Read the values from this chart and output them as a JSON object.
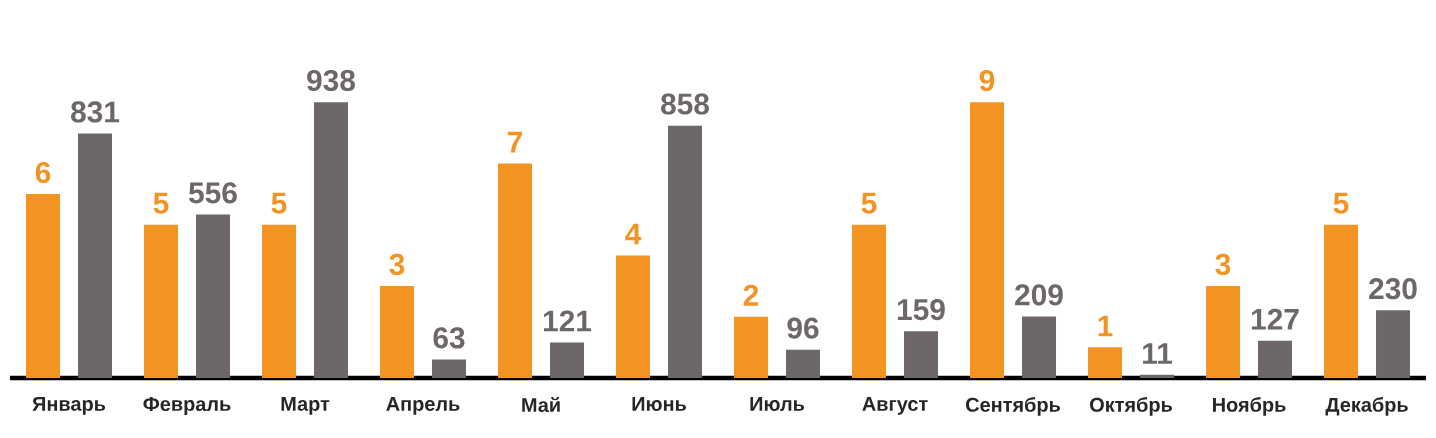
{
  "chart_data": {
    "type": "bar",
    "categories": [
      "Январь",
      "Февраль",
      "Март",
      "Апрель",
      "Май",
      "Июнь",
      "Июль",
      "Август",
      "Сентябрь",
      "Октябрь",
      "Ноябрь",
      "Декабрь"
    ],
    "series": [
      {
        "color": "#f39322",
        "values": [
          6,
          5,
          5,
          3,
          7,
          4,
          2,
          5,
          9,
          1,
          3,
          5
        ]
      },
      {
        "color": "#6d6768",
        "axis": "y2",
        "values": [
          831,
          556,
          938,
          63,
          121,
          858,
          96,
          159,
          209,
          11,
          127,
          230
        ]
      }
    ],
    "data_labels": true
  }
}
